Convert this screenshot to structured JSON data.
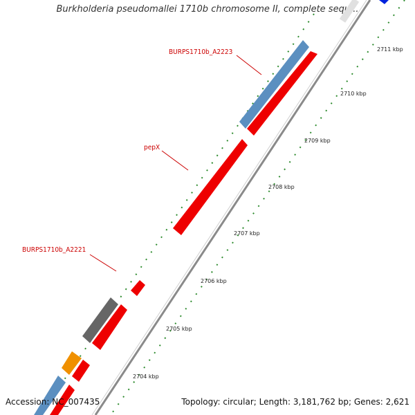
{
  "title": "Burkholderia pseudomallei 1710b chromosome II, complete sequ...",
  "accession": "Accession: NC_007435",
  "summary": "Topology: circular; Length: 3,181,762 bp; Genes: 2,621",
  "colors": {
    "backbone": "#8a8a8a",
    "forward_cds": "#ee0000",
    "reverse_cds": "#5b8fc0",
    "other_gray": "#666666",
    "other_orange": "#f09000",
    "dotted_outer": "#2e8b2e",
    "dotted_inner": "#2e8b2e",
    "label_red": "#cc0000"
  },
  "genes": [
    {
      "name": "BURPS1710b_A2223",
      "label": "BURPS1710b_A2223"
    },
    {
      "name": "pepX",
      "label": "pepX"
    },
    {
      "name": "BURPS1710b_A2221",
      "label": "BURPS1710b_A2221"
    }
  ],
  "ticks": [
    {
      "label": "2711 kbp"
    },
    {
      "label": "2710 kbp"
    },
    {
      "label": "2709 kbp"
    },
    {
      "label": "2708 kbp"
    },
    {
      "label": "2707 kbp"
    },
    {
      "label": "2706 kbp"
    },
    {
      "label": "2705 kbp"
    },
    {
      "label": "2704 kbp"
    }
  ]
}
